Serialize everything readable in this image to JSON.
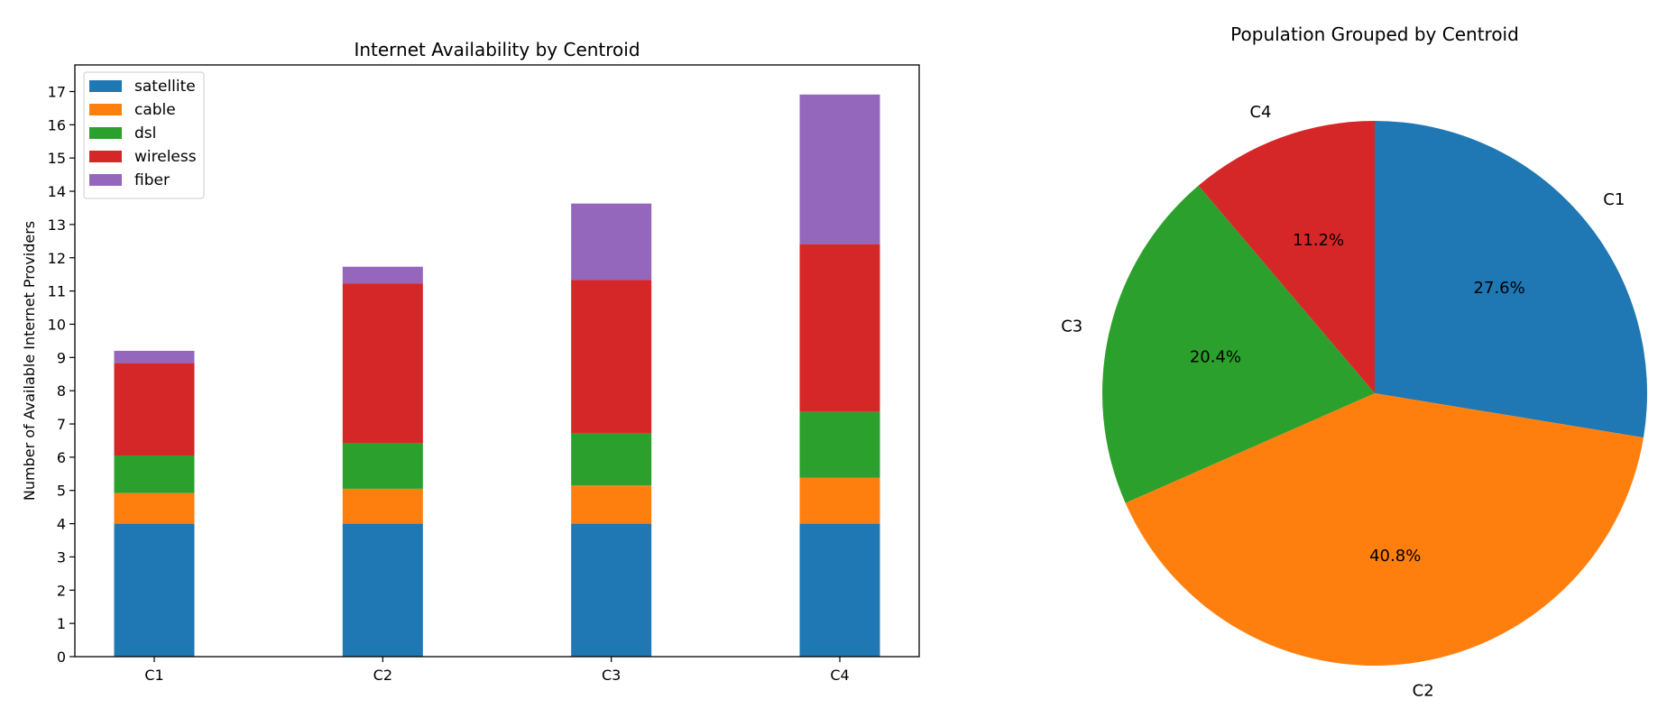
{
  "chart_data": [
    {
      "type": "bar",
      "stacked": true,
      "title": "Internet Availability by Centroid",
      "xlabel": "",
      "ylabel": "Number of Available Internet Providers",
      "categories": [
        "C1",
        "C2",
        "C3",
        "C4"
      ],
      "ylim": [
        0,
        17.8
      ],
      "yticks": [
        0,
        1,
        2,
        3,
        4,
        5,
        6,
        7,
        8,
        9,
        10,
        11,
        12,
        13,
        14,
        15,
        16,
        17
      ],
      "legend_position": "top-left",
      "grid": false,
      "series": [
        {
          "name": "satellite",
          "color": "#1f77b4",
          "values": [
            4.0,
            4.0,
            4.0,
            4.0
          ]
        },
        {
          "name": "cable",
          "color": "#ff7f0e",
          "values": [
            0.92,
            1.05,
            1.15,
            1.38
          ]
        },
        {
          "name": "dsl",
          "color": "#2ca02c",
          "values": [
            1.13,
            1.38,
            1.58,
            1.98
          ]
        },
        {
          "name": "wireless",
          "color": "#d62728",
          "values": [
            2.78,
            4.8,
            4.6,
            5.05
          ]
        },
        {
          "name": "fiber",
          "color": "#9467bd",
          "values": [
            0.37,
            0.5,
            2.3,
            4.5
          ]
        }
      ]
    },
    {
      "type": "pie",
      "title": "Population Grouped by Centroid",
      "labels": [
        "C1",
        "C2",
        "C3",
        "C4"
      ],
      "values": [
        27.6,
        40.8,
        20.4,
        11.2
      ],
      "value_labels": [
        "27.6%",
        "40.8%",
        "20.4%",
        "11.2%"
      ],
      "colors": [
        "#1f77b4",
        "#ff7f0e",
        "#2ca02c",
        "#d62728"
      ],
      "start_angle_deg": 90,
      "direction": "clockwise"
    }
  ]
}
